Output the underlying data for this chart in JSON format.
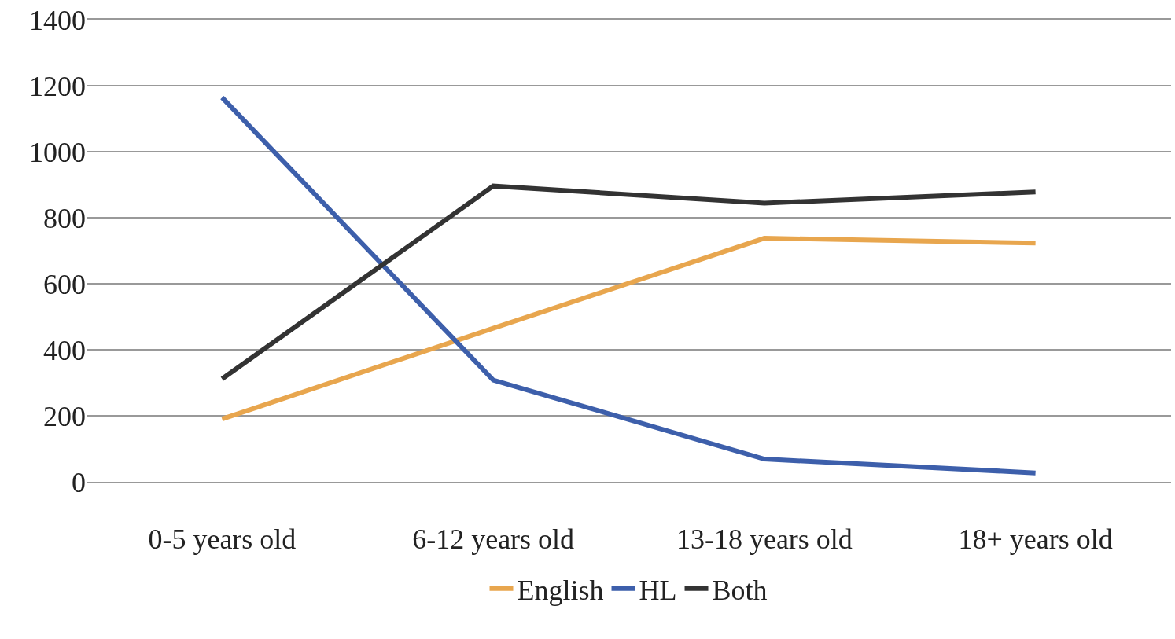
{
  "chart_data": {
    "type": "line",
    "categories": [
      "0-5 years old",
      "6-12 years old",
      "13-18 years old",
      "18+ years old"
    ],
    "series": [
      {
        "name": "English",
        "color": "#e8a64e",
        "values": [
          190,
          465,
          738,
          723
        ]
      },
      {
        "name": "HL",
        "color": "#3d5fab",
        "values": [
          1164,
          308,
          69,
          27
        ]
      },
      {
        "name": "Both",
        "color": "#333333",
        "values": [
          312,
          896,
          844,
          878
        ]
      }
    ],
    "ylim": [
      0,
      1400
    ],
    "yticks": [
      0,
      200,
      400,
      600,
      800,
      1000,
      1200,
      1400
    ],
    "grid": "y",
    "legend": "bottom",
    "marker": "none",
    "line_style": "solid"
  }
}
